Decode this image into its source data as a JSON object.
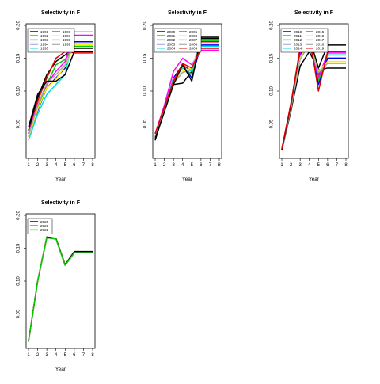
{
  "chart_data": [
    {
      "type": "line",
      "title": "Selectivity in F",
      "xlabel": "Year",
      "ylabel": "",
      "x": [
        1,
        2,
        3,
        4,
        5,
        6,
        7,
        8
      ],
      "xticks": [
        "1",
        "2",
        "3",
        "4",
        "5",
        "6",
        "7",
        "8"
      ],
      "yticks": [
        "0.05",
        "0.10",
        "0.15",
        "0.20"
      ],
      "ylim": [
        0,
        0.2
      ],
      "legend_position": "top-left",
      "series": [
        {
          "name": "1991",
          "color": "#000000",
          "values": [
            0.04,
            0.09,
            0.125,
            0.145,
            0.155,
            0.165,
            0.165,
            0.165
          ]
        },
        {
          "name": "1992",
          "color": "#dd0000",
          "values": [
            0.035,
            0.085,
            0.12,
            0.15,
            0.16,
            0.158,
            0.158,
            0.158
          ]
        },
        {
          "name": "1993",
          "color": "#00cc00",
          "values": [
            0.03,
            0.075,
            0.11,
            0.14,
            0.148,
            0.168,
            0.168,
            0.168
          ]
        },
        {
          "name": "1994",
          "color": "#0000ee",
          "values": [
            0.03,
            0.07,
            0.105,
            0.12,
            0.135,
            0.175,
            0.175,
            0.175
          ]
        },
        {
          "name": "1995",
          "color": "#00dddd",
          "values": [
            0.025,
            0.065,
            0.095,
            0.11,
            0.125,
            0.19,
            0.19,
            0.19
          ]
        },
        {
          "name": "1996",
          "color": "#ff00ff",
          "values": [
            0.035,
            0.08,
            0.11,
            0.13,
            0.145,
            0.185,
            0.185,
            0.185
          ]
        },
        {
          "name": "1997",
          "color": "#ffee00",
          "values": [
            0.03,
            0.072,
            0.105,
            0.118,
            0.138,
            0.17,
            0.17,
            0.17
          ]
        },
        {
          "name": "1998",
          "color": "#aaaaaa",
          "values": [
            0.032,
            0.078,
            0.112,
            0.125,
            0.14,
            0.172,
            0.172,
            0.172
          ]
        },
        {
          "name": "1999",
          "color": "#000000",
          "values": [
            0.045,
            0.095,
            0.115,
            0.115,
            0.125,
            0.16,
            0.16,
            0.16
          ]
        }
      ]
    },
    {
      "type": "line",
      "title": "Selectivity in F",
      "xlabel": "Year",
      "ylabel": "",
      "x": [
        1,
        2,
        3,
        4,
        5,
        6,
        7,
        8
      ],
      "xticks": [
        "1",
        "2",
        "3",
        "4",
        "5",
        "6",
        "7",
        "8"
      ],
      "yticks": [
        "0.05",
        "0.10",
        "0.15",
        "0.20"
      ],
      "ylim": [
        0,
        0.2
      ],
      "legend_position": "top-left",
      "series": [
        {
          "name": "2000",
          "color": "#000000",
          "values": [
            0.025,
            0.07,
            0.11,
            0.112,
            0.13,
            0.18,
            0.18,
            0.18
          ]
        },
        {
          "name": "2001",
          "color": "#dd0000",
          "values": [
            0.03,
            0.072,
            0.115,
            0.14,
            0.13,
            0.175,
            0.175,
            0.175
          ]
        },
        {
          "name": "2002",
          "color": "#00cc00",
          "values": [
            0.03,
            0.07,
            0.118,
            0.138,
            0.125,
            0.177,
            0.177,
            0.177
          ]
        },
        {
          "name": "2003",
          "color": "#0000ee",
          "values": [
            0.03,
            0.072,
            0.12,
            0.14,
            0.12,
            0.17,
            0.17,
            0.17
          ]
        },
        {
          "name": "2004",
          "color": "#00dddd",
          "values": [
            0.032,
            0.075,
            0.118,
            0.135,
            0.13,
            0.168,
            0.168,
            0.168
          ]
        },
        {
          "name": "2005",
          "color": "#ff00ff",
          "values": [
            0.035,
            0.078,
            0.13,
            0.15,
            0.14,
            0.162,
            0.162,
            0.162
          ]
        },
        {
          "name": "2006",
          "color": "#ffee00",
          "values": [
            0.032,
            0.072,
            0.115,
            0.13,
            0.135,
            0.172,
            0.172,
            0.172
          ]
        },
        {
          "name": "2007",
          "color": "#aaaaaa",
          "values": [
            0.03,
            0.07,
            0.112,
            0.128,
            0.133,
            0.178,
            0.178,
            0.178
          ]
        },
        {
          "name": "2008",
          "color": "#000000",
          "values": [
            0.028,
            0.068,
            0.11,
            0.14,
            0.115,
            0.182,
            0.182,
            0.182
          ]
        },
        {
          "name": "2009",
          "color": "#dd0000",
          "values": [
            0.035,
            0.075,
            0.115,
            0.142,
            0.135,
            0.165,
            0.165,
            0.165
          ]
        }
      ]
    },
    {
      "type": "line",
      "title": "Selectivity in F",
      "xlabel": "Year",
      "ylabel": "",
      "x": [
        1,
        2,
        3,
        4,
        5,
        6,
        7,
        8
      ],
      "xticks": [
        "1",
        "2",
        "3",
        "4",
        "5",
        "6",
        "7",
        "8"
      ],
      "yticks": [
        "0.05",
        "0.10",
        "0.15",
        "0.20"
      ],
      "ylim": [
        0,
        0.2
      ],
      "legend_position": "top-left",
      "series": [
        {
          "name": "2010",
          "color": "#000000",
          "values": [
            0.01,
            0.07,
            0.138,
            0.16,
            0.132,
            0.135,
            0.135,
            0.135
          ]
        },
        {
          "name": "2011",
          "color": "#dd0000",
          "values": [
            0.012,
            0.075,
            0.15,
            0.17,
            0.125,
            0.15,
            0.15,
            0.15
          ]
        },
        {
          "name": "2012",
          "color": "#00cc00",
          "values": [
            0.011,
            0.08,
            0.16,
            0.175,
            0.115,
            0.155,
            0.155,
            0.155
          ]
        },
        {
          "name": "2013",
          "color": "#0000ee",
          "values": [
            0.01,
            0.078,
            0.155,
            0.178,
            0.11,
            0.15,
            0.15,
            0.15
          ]
        },
        {
          "name": "2014",
          "color": "#00dddd",
          "values": [
            0.01,
            0.076,
            0.152,
            0.176,
            0.12,
            0.155,
            0.155,
            0.155
          ]
        },
        {
          "name": "2015",
          "color": "#ff00ff",
          "values": [
            0.012,
            0.08,
            0.158,
            0.18,
            0.12,
            0.158,
            0.158,
            0.158
          ]
        },
        {
          "name": "2016",
          "color": "#ffee00",
          "values": [
            0.011,
            0.075,
            0.15,
            0.175,
            0.13,
            0.145,
            0.145,
            0.145
          ]
        },
        {
          "name": "2017",
          "color": "#aaaaaa",
          "values": [
            0.01,
            0.074,
            0.148,
            0.172,
            0.128,
            0.142,
            0.142,
            0.142
          ]
        },
        {
          "name": "2018",
          "color": "#000000",
          "values": [
            0.01,
            0.08,
            0.165,
            0.182,
            0.135,
            0.17,
            0.17,
            0.17
          ]
        },
        {
          "name": "2019",
          "color": "#dd0000",
          "values": [
            0.012,
            0.082,
            0.165,
            0.185,
            0.1,
            0.16,
            0.16,
            0.16
          ]
        }
      ]
    },
    {
      "type": "line",
      "title": "Selectivity in F",
      "xlabel": "Year",
      "ylabel": "",
      "x": [
        1,
        2,
        3,
        4,
        5,
        6,
        7,
        8
      ],
      "xticks": [
        "1",
        "2",
        "3",
        "4",
        "5",
        "6",
        "7",
        "8"
      ],
      "yticks": [
        "0.05",
        "0.10",
        "0.15",
        "0.20"
      ],
      "ylim": [
        0,
        0.2
      ],
      "legend_position": "top-left",
      "series": [
        {
          "name": "2020",
          "color": "#000000",
          "values": [
            0.008,
            0.1,
            0.167,
            0.165,
            0.125,
            0.145,
            0.145,
            0.145
          ]
        },
        {
          "name": "2021",
          "color": "#dd0000",
          "values": [
            0.008,
            0.1,
            0.166,
            0.164,
            0.124,
            0.143,
            0.143,
            0.143
          ]
        },
        {
          "name": "2022",
          "color": "#00cc00",
          "values": [
            0.008,
            0.1,
            0.166,
            0.164,
            0.124,
            0.143,
            0.143,
            0.143
          ]
        }
      ]
    }
  ]
}
